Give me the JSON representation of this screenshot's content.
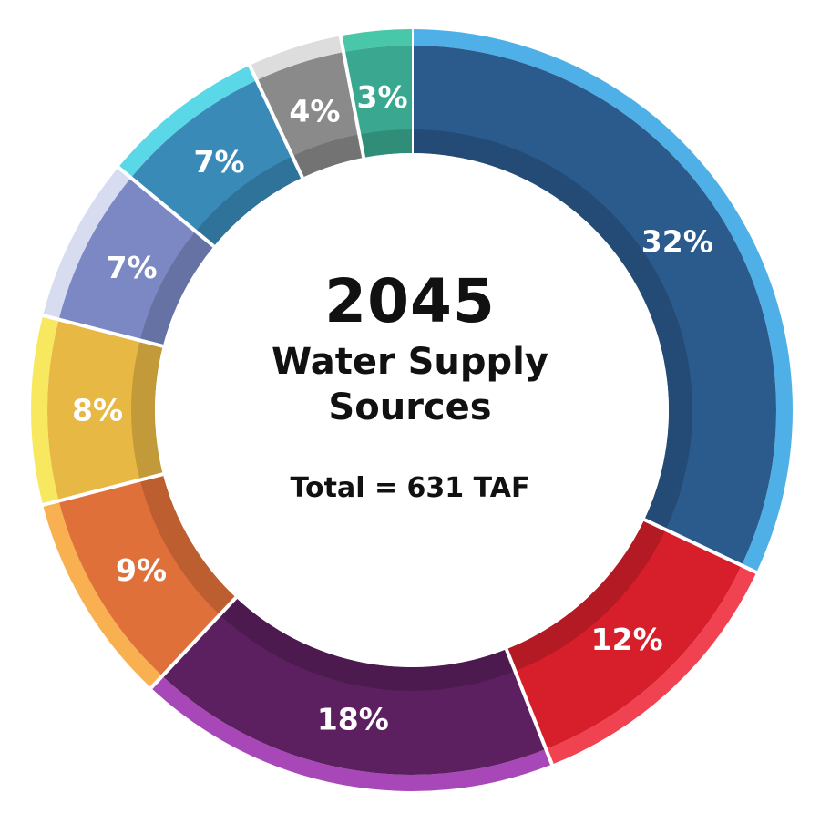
{
  "chart_data": {
    "type": "pie",
    "title": "2045",
    "subtitle": "Water Supply Sources",
    "annotation": "Total = 631 TAF",
    "values": [
      32,
      12,
      18,
      9,
      8,
      7,
      7,
      4,
      3
    ],
    "labels": [
      "32%",
      "12%",
      "18%",
      "9%",
      "8%",
      "7%",
      "7%",
      "4%",
      "3%"
    ],
    "colors": [
      "#2b5a8c",
      "#d61f2a",
      "#5c2060",
      "#e0703a",
      "#e8b845",
      "#7b88c4",
      "#3a8ab8",
      "#8a8a8a",
      "#3aa890"
    ],
    "outer_colors": [
      "#4fb0e8",
      "#f04250",
      "#a848b8",
      "#f8b050",
      "#f8e860",
      "#d8dcf0",
      "#5ad8e8",
      "#dddddd",
      "#48c8a8"
    ]
  }
}
